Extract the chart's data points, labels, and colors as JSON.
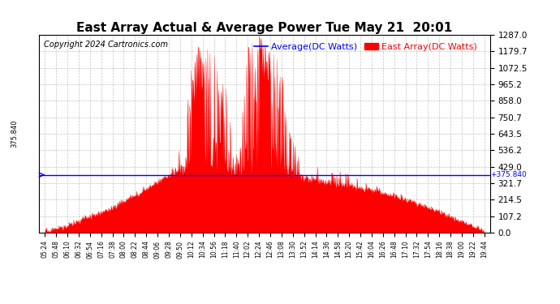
{
  "title": "East Array Actual & Average Power Tue May 21  20:01",
  "copyright": "Copyright 2024 Cartronics.com",
  "legend_avg": "Average(DC Watts)",
  "legend_east": "East Array(DC Watts)",
  "avg_value": 375.84,
  "avg_label": "375.840",
  "ymin": 0.0,
  "ymax": 1287.0,
  "yticks": [
    0.0,
    107.2,
    214.5,
    321.7,
    429.0,
    536.2,
    643.5,
    750.7,
    858.0,
    965.2,
    1072.5,
    1179.7,
    1287.0
  ],
  "background_color": "#ffffff",
  "fill_color": "#ff0000",
  "avg_line_color": "#0000ff",
  "title_fontsize": 11,
  "copyright_fontsize": 7,
  "legend_fontsize": 8,
  "xtick_fontsize": 5.5,
  "ytick_fontsize": 7.5,
  "grid_color": "#aaaaaa",
  "spine_color": "#000000",
  "x_labels": [
    "05:24",
    "05:48",
    "06:10",
    "06:32",
    "06:54",
    "07:16",
    "07:38",
    "08:00",
    "08:22",
    "08:44",
    "09:06",
    "09:28",
    "09:50",
    "10:12",
    "10:34",
    "10:56",
    "11:18",
    "11:40",
    "12:02",
    "12:24",
    "12:46",
    "13:08",
    "13:30",
    "13:52",
    "14:14",
    "14:36",
    "14:58",
    "15:20",
    "15:42",
    "16:04",
    "16:26",
    "16:48",
    "17:10",
    "17:32",
    "17:54",
    "18:16",
    "18:38",
    "19:00",
    "19:22",
    "19:44"
  ],
  "base_envelope": [
    10,
    20,
    40,
    70,
    100,
    130,
    160,
    200,
    240,
    280,
    320,
    360,
    380,
    375,
    370,
    365,
    370,
    370,
    370,
    365,
    360,
    355,
    350,
    340,
    320,
    310,
    300,
    290,
    280,
    270,
    250,
    230,
    210,
    190,
    160,
    130,
    100,
    70,
    40,
    5
  ],
  "spike_envelope": [
    15,
    30,
    60,
    100,
    130,
    160,
    180,
    220,
    260,
    310,
    360,
    420,
    600,
    1100,
    1287,
    1200,
    1000,
    900,
    1287,
    1287,
    1200,
    1100,
    600,
    500,
    450,
    420,
    400,
    380,
    360,
    340,
    310,
    270,
    230,
    200,
    170,
    140,
    110,
    80,
    50,
    10
  ]
}
